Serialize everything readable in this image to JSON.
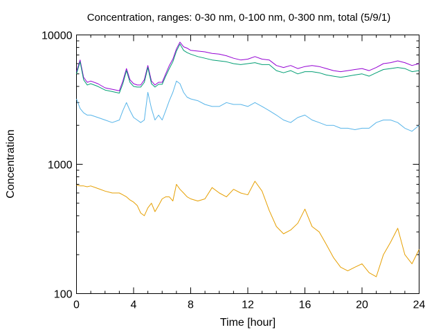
{
  "chart_data": {
    "type": "line",
    "title": "Concentration, ranges: 0-30 nm, 0-100 nm, 0-300 nm, total (5/9/1)",
    "xlabel": "Time [hour]",
    "ylabel": "Concentration",
    "xlim": [
      0,
      24
    ],
    "ylim": [
      100,
      10000
    ],
    "yscale": "log",
    "grid": false,
    "legend": "none",
    "x_ticks": [
      "0",
      "4",
      "8",
      "12",
      "16",
      "20",
      "24"
    ],
    "y_ticks": [
      "100",
      "1000",
      "10000"
    ],
    "x": [
      0,
      0.25,
      0.5,
      0.75,
      1,
      1.5,
      2,
      2.5,
      3,
      3.25,
      3.5,
      3.75,
      4,
      4.25,
      4.5,
      4.75,
      5,
      5.25,
      5.5,
      5.75,
      6,
      6.25,
      6.5,
      6.75,
      7,
      7.25,
      7.5,
      7.75,
      8,
      8.5,
      9,
      9.5,
      10,
      10.5,
      11,
      11.5,
      12,
      12.5,
      13,
      13.5,
      14,
      14.5,
      15,
      15.5,
      16,
      16.5,
      17,
      17.5,
      18,
      18.5,
      19,
      19.5,
      20,
      20.5,
      21,
      21.5,
      22,
      22.5,
      23,
      23.5,
      24
    ],
    "series": [
      {
        "color": "#9400d3",
        "values": [
          5200,
          6400,
          4700,
          4300,
          4400,
          4200,
          3900,
          3800,
          3700,
          4400,
          5500,
          4500,
          4200,
          4100,
          4100,
          4500,
          5800,
          4400,
          4100,
          4300,
          4300,
          5000,
          5800,
          6500,
          7800,
          8800,
          8100,
          7900,
          7600,
          7500,
          7400,
          7200,
          7100,
          6900,
          6600,
          6400,
          6500,
          6800,
          6500,
          6400,
          5800,
          5600,
          5800,
          5500,
          5700,
          5800,
          5700,
          5500,
          5300,
          5200,
          5300,
          5400,
          5500,
          5300,
          5600,
          6000,
          6100,
          6300,
          6100,
          5800,
          6000
        ]
      },
      {
        "color": "#009e73",
        "values": [
          5000,
          6200,
          4500,
          4100,
          4200,
          4000,
          3750,
          3650,
          3550,
          4200,
          5300,
          4300,
          4000,
          3950,
          3950,
          4300,
          5600,
          4200,
          3950,
          4150,
          4150,
          4800,
          5500,
          6200,
          7500,
          8500,
          7600,
          7300,
          7100,
          6800,
          6600,
          6400,
          6300,
          6200,
          6000,
          5900,
          6000,
          6100,
          5900,
          5900,
          5300,
          5100,
          5300,
          5000,
          5200,
          5200,
          5100,
          4900,
          4800,
          4700,
          4800,
          4900,
          5000,
          4800,
          5100,
          5400,
          5500,
          5600,
          5500,
          5200,
          5300
        ]
      },
      {
        "color": "#56b4e9",
        "values": [
          3200,
          2700,
          2500,
          2400,
          2400,
          2300,
          2200,
          2100,
          2200,
          2600,
          3000,
          2600,
          2300,
          2200,
          2100,
          2200,
          3600,
          2700,
          2200,
          2400,
          2200,
          2600,
          3100,
          3600,
          4400,
          4200,
          3600,
          3300,
          3200,
          3100,
          2900,
          2800,
          2800,
          3000,
          2900,
          2900,
          2800,
          3000,
          2800,
          2600,
          2400,
          2200,
          2100,
          2300,
          2400,
          2200,
          2100,
          2000,
          2000,
          1900,
          1900,
          1850,
          1900,
          1900,
          2100,
          2200,
          2200,
          2100,
          1900,
          1800,
          2000
        ]
      },
      {
        "color": "#e69f00",
        "values": [
          690,
          680,
          680,
          670,
          680,
          650,
          620,
          600,
          600,
          580,
          560,
          530,
          510,
          480,
          420,
          400,
          460,
          500,
          430,
          480,
          540,
          560,
          560,
          520,
          700,
          640,
          600,
          560,
          540,
          520,
          540,
          660,
          600,
          560,
          640,
          600,
          580,
          740,
          620,
          440,
          330,
          290,
          310,
          350,
          450,
          330,
          300,
          240,
          190,
          160,
          150,
          160,
          170,
          145,
          135,
          200,
          250,
          320,
          200,
          170,
          220
        ]
      }
    ]
  }
}
